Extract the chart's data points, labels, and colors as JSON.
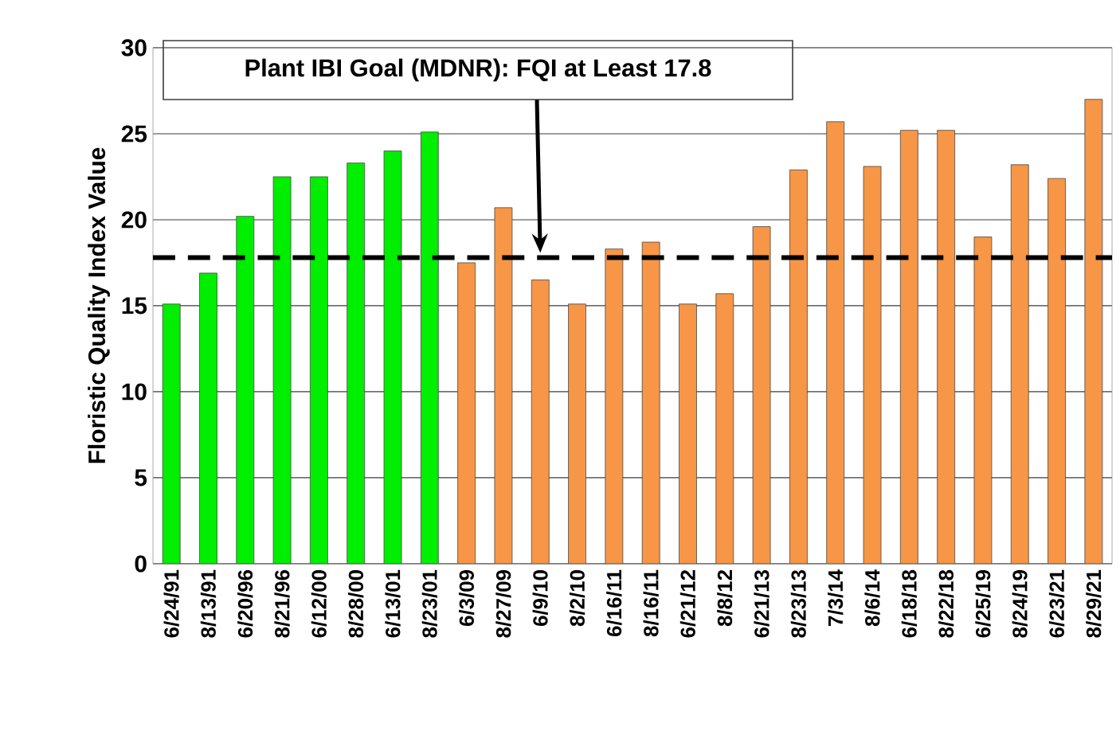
{
  "chart_data": {
    "type": "bar",
    "ylabel": "Floristic Quality Index Value",
    "categories": [
      "6/24/91",
      "8/13/91",
      "6/20/96",
      "8/21/96",
      "6/12/00",
      "8/28/00",
      "6/13/01",
      "8/23/01",
      "6/3/09",
      "8/27/09",
      "6/9/10",
      "8/2/10",
      "6/16/11",
      "8/16/11",
      "6/21/12",
      "8/8/12",
      "6/21/13",
      "8/23/13",
      "7/3/14",
      "8/6/14",
      "6/18/18",
      "8/22/18",
      "6/25/19",
      "8/24/19",
      "6/23/21",
      "8/29/21"
    ],
    "values": [
      15.1,
      16.9,
      20.2,
      22.5,
      22.5,
      23.3,
      24.0,
      25.1,
      17.5,
      20.7,
      16.5,
      15.1,
      18.3,
      18.7,
      15.1,
      15.7,
      19.6,
      22.9,
      25.7,
      23.1,
      25.2,
      25.2,
      19.0,
      23.2,
      22.4,
      27.0
    ],
    "colors": [
      "#00ee00",
      "#00ee00",
      "#00ee00",
      "#00ee00",
      "#00ee00",
      "#00ee00",
      "#00ee00",
      "#00ee00",
      "#f79646",
      "#f79646",
      "#f79646",
      "#f79646",
      "#f79646",
      "#f79646",
      "#f79646",
      "#f79646",
      "#f79646",
      "#f79646",
      "#f79646",
      "#f79646",
      "#f79646",
      "#f79646",
      "#f79646",
      "#f79646",
      "#f79646",
      "#f79646"
    ],
    "ylim": [
      0,
      30
    ],
    "yticks": [
      0,
      5,
      10,
      15,
      20,
      25,
      30
    ],
    "grid": "y",
    "ref_lines": [
      {
        "axis": "y",
        "value": 17.8,
        "line_style": "dashed",
        "color": "#000000"
      }
    ],
    "annotations": [
      "Plant IBI Goal (MDNR): FQI at Least 17.8"
    ]
  }
}
